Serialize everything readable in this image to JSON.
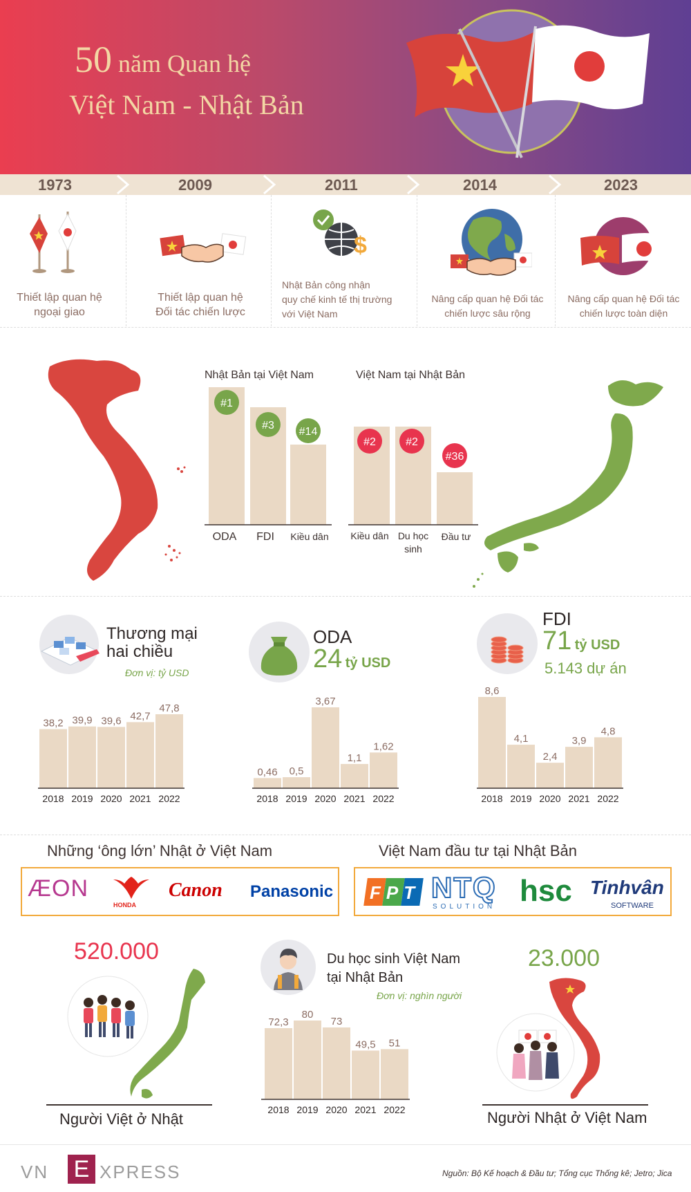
{
  "header": {
    "title_num": "50",
    "title_rest": "năm Quan hệ",
    "title_line2": "Việt Nam - Nhật Bản"
  },
  "timeline": [
    {
      "year": "1973",
      "text": [
        "Thiết lập quan hệ",
        "ngoại giao"
      ]
    },
    {
      "year": "2009",
      "text": [
        "Thiết lập quan hệ",
        "Đối tác chiến lược"
      ]
    },
    {
      "year": "2011",
      "text": [
        "Nhật Bản công nhận",
        "quy chế kinh tế thị trường",
        "với Việt Nam"
      ]
    },
    {
      "year": "2014",
      "text": [
        "Nâng cấp quan hệ Đối tác",
        "chiến lược sâu rộng"
      ]
    },
    {
      "year": "2023",
      "text": [
        "Nâng cấp quan hệ Đối tác",
        "chiến lược toàn diện"
      ]
    }
  ],
  "colors": {
    "red": "#e8344e",
    "green": "#78a54a",
    "bar": "#ead9c5",
    "vn_map": "#d9463f",
    "jp_map": "#7fa94c",
    "timeline_band": "#efe3d3",
    "box_border": "#f2a93b"
  },
  "rankings": {
    "japan_in_vn": {
      "title": "Nhật Bản tại Việt Nam",
      "items": [
        {
          "label": "ODA",
          "rank": "#1"
        },
        {
          "label": "FDI",
          "rank": "#3"
        },
        {
          "label": "Kiều dân",
          "rank": "#14"
        }
      ]
    },
    "vn_in_japan": {
      "title": "Việt Nam tại Nhật Bản",
      "items": [
        {
          "label": "Kiều dân",
          "rank": "#2"
        },
        {
          "label": [
            "Du học",
            "sinh"
          ],
          "rank": "#2"
        },
        {
          "label": "Đầu tư",
          "rank": "#36"
        }
      ]
    }
  },
  "sections": {
    "trade": {
      "title": [
        "Thương mại",
        "hai chiều"
      ],
      "unit": "Đơn vị: tỷ USD"
    },
    "oda": {
      "title": "ODA",
      "value": "24",
      "unit": "tỷ USD"
    },
    "fdi": {
      "title": "FDI",
      "value": "71",
      "unit": "tỷ USD",
      "projects": "5.143 dự án"
    },
    "big_players": "Những ‘ông lớn’ Nhật ở Việt Nam",
    "vn_invest": "Việt Nam đầu tư tại Nhật Bản",
    "students": {
      "title": [
        "Du học sinh Việt Nam",
        "tại Nhật Bản"
      ],
      "unit": "Đơn vị: nghìn người"
    },
    "vn_in_jp": {
      "value": "520.000",
      "label": "Người Việt ở Nhật"
    },
    "jp_in_vn": {
      "value": "23.000",
      "label": "Người Nhật ở Việt Nam"
    }
  },
  "logos": {
    "japan": [
      "ÆON",
      "HONDA",
      "Canon",
      "Panasonic"
    ],
    "vietnam": [
      "FPT",
      "NTQ",
      "SOLUTION",
      "hsc",
      "Tinhvân",
      "SOFTWARE"
    ]
  },
  "chart_data": [
    {
      "type": "bar",
      "id": "trade",
      "categories": [
        "2018",
        "2019",
        "2020",
        "2021",
        "2022"
      ],
      "values": [
        38.2,
        39.9,
        39.6,
        42.7,
        47.8
      ],
      "value_labels": [
        "38,2",
        "39,9",
        "39,6",
        "42,7",
        "47,8"
      ]
    },
    {
      "type": "bar",
      "id": "oda",
      "categories": [
        "2018",
        "2019",
        "2020",
        "2021",
        "2022"
      ],
      "values": [
        0.46,
        0.5,
        3.67,
        1.1,
        1.62
      ],
      "value_labels": [
        "0,46",
        "0,5",
        "3,67",
        "1,1",
        "1,62"
      ]
    },
    {
      "type": "bar",
      "id": "fdi",
      "categories": [
        "2018",
        "2019",
        "2020",
        "2021",
        "2022"
      ],
      "values": [
        8.6,
        4.1,
        2.4,
        3.9,
        4.8
      ],
      "value_labels": [
        "8,6",
        "4,1",
        "2,4",
        "3,9",
        "4,8"
      ]
    },
    {
      "type": "bar",
      "id": "students",
      "categories": [
        "2018",
        "2019",
        "2020",
        "2021",
        "2022"
      ],
      "values": [
        72.3,
        80,
        73,
        49.5,
        51
      ],
      "value_labels": [
        "72,3",
        "80",
        "73",
        "49,5",
        "51"
      ]
    }
  ],
  "footer": {
    "brand_left": "VN",
    "brand_mid": "E",
    "brand_right": "XPRESS",
    "source": "Nguồn: Bộ Kế hoạch & Đầu tư; Tổng cục Thống kê; Jetro; Jica"
  }
}
